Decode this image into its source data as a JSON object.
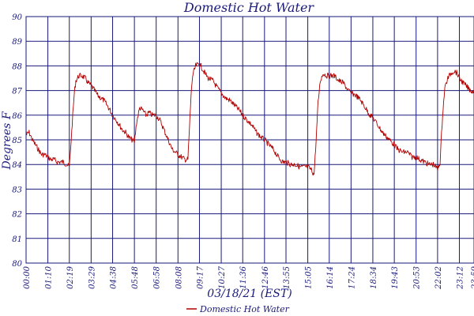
{
  "chart_data": {
    "type": "line",
    "title": "Domestic Hot Water",
    "xlabel": "03/18/21 (EST)",
    "ylabel": "Degrees F",
    "ylim": [
      80,
      90
    ],
    "y_ticks": [
      "80",
      "81",
      "82",
      "83",
      "84",
      "85",
      "86",
      "87",
      "88",
      "89",
      "90"
    ],
    "x_ticks": [
      "00:00",
      "01:10",
      "02:19",
      "03:29",
      "04:38",
      "05:48",
      "06:58",
      "08:08",
      "09:17",
      "10:27",
      "11:36",
      "12:46",
      "13:55",
      "15:05",
      "16:14",
      "17:24",
      "18:34",
      "19:43",
      "20:53",
      "22:02",
      "23:12",
      "23:59"
    ],
    "x_range": [
      "00:00",
      "23:59"
    ],
    "grid": true,
    "legend_position": "bottom",
    "colors": {
      "series": "#b00000",
      "grid": "#1a1a7a",
      "text": "#1a1a7a"
    },
    "series": [
      {
        "name": "Domestic Hot Water",
        "points": [
          [
            "00:00",
            85.2
          ],
          [
            "00:10",
            85.3
          ],
          [
            "00:20",
            85.0
          ],
          [
            "00:30",
            84.8
          ],
          [
            "00:40",
            84.6
          ],
          [
            "00:50",
            84.4
          ],
          [
            "01:00",
            84.4
          ],
          [
            "01:10",
            84.3
          ],
          [
            "01:20",
            84.2
          ],
          [
            "01:30",
            84.2
          ],
          [
            "01:40",
            84.1
          ],
          [
            "01:50",
            84.1
          ],
          [
            "02:00",
            84.1
          ],
          [
            "02:10",
            84.0
          ],
          [
            "02:19",
            83.9
          ],
          [
            "02:25",
            85.0
          ],
          [
            "02:30",
            86.0
          ],
          [
            "02:35",
            86.9
          ],
          [
            "02:40",
            87.4
          ],
          [
            "02:50",
            87.6
          ],
          [
            "03:00",
            87.6
          ],
          [
            "03:10",
            87.5
          ],
          [
            "03:20",
            87.3
          ],
          [
            "03:29",
            87.2
          ],
          [
            "03:40",
            87.0
          ],
          [
            "03:50",
            86.8
          ],
          [
            "04:00",
            86.7
          ],
          [
            "04:10",
            86.6
          ],
          [
            "04:20",
            86.4
          ],
          [
            "04:30",
            86.2
          ],
          [
            "04:38",
            86.0
          ],
          [
            "04:50",
            85.8
          ],
          [
            "05:00",
            85.6
          ],
          [
            "05:10",
            85.4
          ],
          [
            "05:20",
            85.3
          ],
          [
            "05:30",
            85.1
          ],
          [
            "05:40",
            85.0
          ],
          [
            "05:48",
            84.9
          ],
          [
            "05:55",
            85.7
          ],
          [
            "06:05",
            86.3
          ],
          [
            "06:15",
            86.2
          ],
          [
            "06:25",
            86.0
          ],
          [
            "06:35",
            86.1
          ],
          [
            "06:45",
            86.0
          ],
          [
            "06:58",
            86.0
          ],
          [
            "07:10",
            85.8
          ],
          [
            "07:20",
            85.5
          ],
          [
            "07:30",
            85.2
          ],
          [
            "07:40",
            84.9
          ],
          [
            "07:50",
            84.6
          ],
          [
            "08:00",
            84.5
          ],
          [
            "08:08",
            84.4
          ],
          [
            "08:20",
            84.3
          ],
          [
            "08:30",
            84.2
          ],
          [
            "08:40",
            84.2
          ],
          [
            "08:45",
            85.5
          ],
          [
            "08:50",
            86.8
          ],
          [
            "08:55",
            87.6
          ],
          [
            "09:05",
            88.0
          ],
          [
            "09:17",
            88.1
          ],
          [
            "09:30",
            87.8
          ],
          [
            "09:45",
            87.5
          ],
          [
            "10:00",
            87.4
          ],
          [
            "10:15",
            87.1
          ],
          [
            "10:27",
            86.9
          ],
          [
            "10:40",
            86.7
          ],
          [
            "10:55",
            86.6
          ],
          [
            "11:10",
            86.4
          ],
          [
            "11:25",
            86.2
          ],
          [
            "11:36",
            86.0
          ],
          [
            "11:50",
            85.8
          ],
          [
            "12:05",
            85.6
          ],
          [
            "12:20",
            85.3
          ],
          [
            "12:35",
            85.1
          ],
          [
            "12:46",
            85.0
          ],
          [
            "13:00",
            84.8
          ],
          [
            "13:15",
            84.6
          ],
          [
            "13:30",
            84.3
          ],
          [
            "13:45",
            84.1
          ],
          [
            "13:55",
            84.1
          ],
          [
            "14:10",
            84.0
          ],
          [
            "14:25",
            84.0
          ],
          [
            "14:40",
            83.9
          ],
          [
            "14:55",
            83.9
          ],
          [
            "15:05",
            83.9
          ],
          [
            "15:15",
            83.8
          ],
          [
            "15:25",
            83.6
          ],
          [
            "15:32",
            85.0
          ],
          [
            "15:38",
            86.5
          ],
          [
            "15:45",
            87.4
          ],
          [
            "15:55",
            87.7
          ],
          [
            "16:05",
            87.6
          ],
          [
            "16:14",
            87.6
          ],
          [
            "16:30",
            87.6
          ],
          [
            "16:45",
            87.4
          ],
          [
            "17:00",
            87.3
          ],
          [
            "17:15",
            87.0
          ],
          [
            "17:24",
            86.9
          ],
          [
            "17:40",
            86.8
          ],
          [
            "17:55",
            86.6
          ],
          [
            "18:10",
            86.3
          ],
          [
            "18:25",
            86.0
          ],
          [
            "18:34",
            85.9
          ],
          [
            "18:50",
            85.6
          ],
          [
            "19:05",
            85.3
          ],
          [
            "19:20",
            85.1
          ],
          [
            "19:35",
            84.9
          ],
          [
            "19:43",
            84.8
          ],
          [
            "19:55",
            84.6
          ],
          [
            "20:10",
            84.5
          ],
          [
            "20:25",
            84.5
          ],
          [
            "20:40",
            84.3
          ],
          [
            "20:53",
            84.3
          ],
          [
            "21:05",
            84.2
          ],
          [
            "21:20",
            84.1
          ],
          [
            "21:35",
            84.0
          ],
          [
            "21:50",
            84.0
          ],
          [
            "22:02",
            83.8
          ],
          [
            "22:10",
            84.1
          ],
          [
            "22:18",
            86.0
          ],
          [
            "22:25",
            87.1
          ],
          [
            "22:35",
            87.5
          ],
          [
            "22:45",
            87.7
          ],
          [
            "22:55",
            87.8
          ],
          [
            "23:05",
            87.7
          ],
          [
            "23:12",
            87.5
          ],
          [
            "23:25",
            87.3
          ],
          [
            "23:40",
            87.1
          ],
          [
            "23:50",
            87.0
          ],
          [
            "23:59",
            86.9
          ]
        ]
      }
    ]
  }
}
